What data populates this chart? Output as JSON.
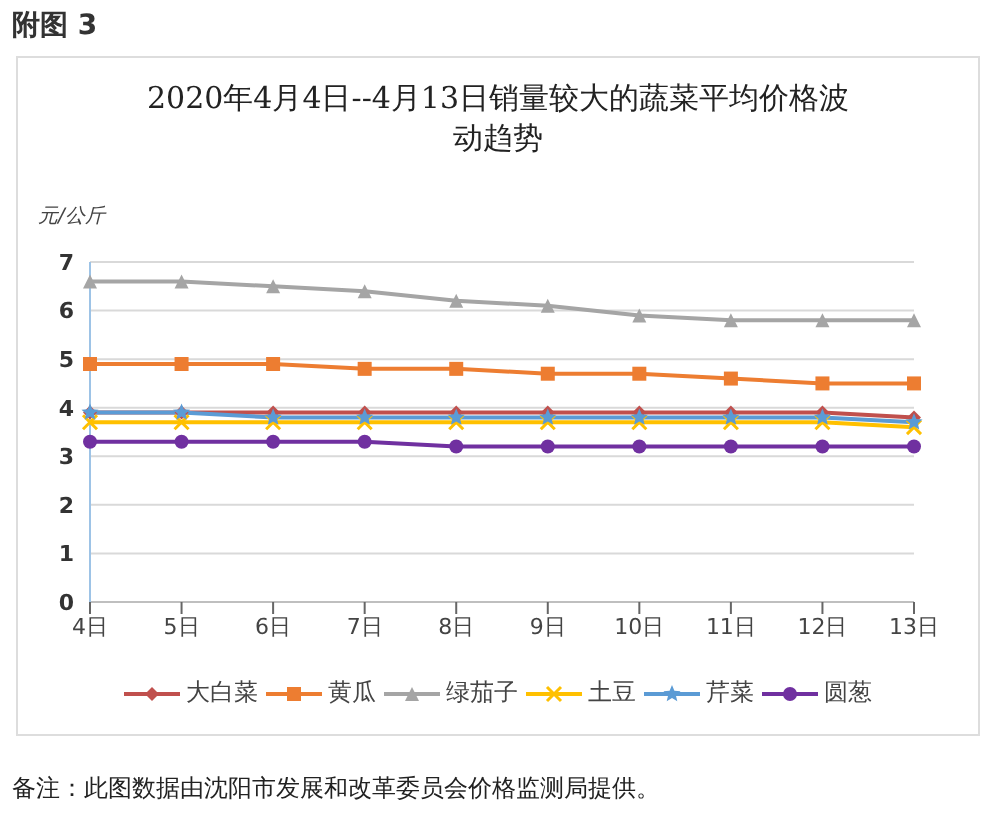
{
  "chart_data": {
    "type": "line",
    "title": "2020年4月4日--4月13日销量较大的蔬菜平均价格波动趋势",
    "ylabel": "元/公斤",
    "annotations": [
      "附图 3",
      "备注：此图数据由沈阳市发展和改革委员会价格监测局提供。"
    ],
    "categories": [
      "4日",
      "5日",
      "6日",
      "7日",
      "8日",
      "9日",
      "10日",
      "11日",
      "12日",
      "13日"
    ],
    "ylim": [
      0,
      7
    ],
    "yticks": [
      0,
      1,
      2,
      3,
      4,
      5,
      6,
      7
    ],
    "grid": "y",
    "legend": "bottom",
    "series": [
      {
        "name": "大白菜",
        "color": "#c0504d",
        "marker": "diamond",
        "values": [
          3.9,
          3.9,
          3.9,
          3.9,
          3.9,
          3.9,
          3.9,
          3.9,
          3.9,
          3.8
        ]
      },
      {
        "name": "黄瓜",
        "color": "#ed7d31",
        "marker": "square",
        "values": [
          4.9,
          4.9,
          4.9,
          4.8,
          4.8,
          4.7,
          4.7,
          4.6,
          4.5,
          4.5
        ]
      },
      {
        "name": "绿茄子",
        "color": "#a5a5a5",
        "marker": "triangle",
        "values": [
          6.6,
          6.6,
          6.5,
          6.4,
          6.2,
          6.1,
          5.9,
          5.8,
          5.8,
          5.8
        ]
      },
      {
        "name": "土豆",
        "color": "#ffc000",
        "marker": "cross",
        "values": [
          3.7,
          3.7,
          3.7,
          3.7,
          3.7,
          3.7,
          3.7,
          3.7,
          3.7,
          3.6
        ]
      },
      {
        "name": "芹菜",
        "color": "#5b9bd5",
        "marker": "star",
        "values": [
          3.9,
          3.9,
          3.8,
          3.8,
          3.8,
          3.8,
          3.8,
          3.8,
          3.8,
          3.7
        ]
      },
      {
        "name": "圆葱",
        "color": "#7030a0",
        "marker": "circle",
        "values": [
          3.3,
          3.3,
          3.3,
          3.3,
          3.2,
          3.2,
          3.2,
          3.2,
          3.2,
          3.2
        ]
      }
    ]
  }
}
